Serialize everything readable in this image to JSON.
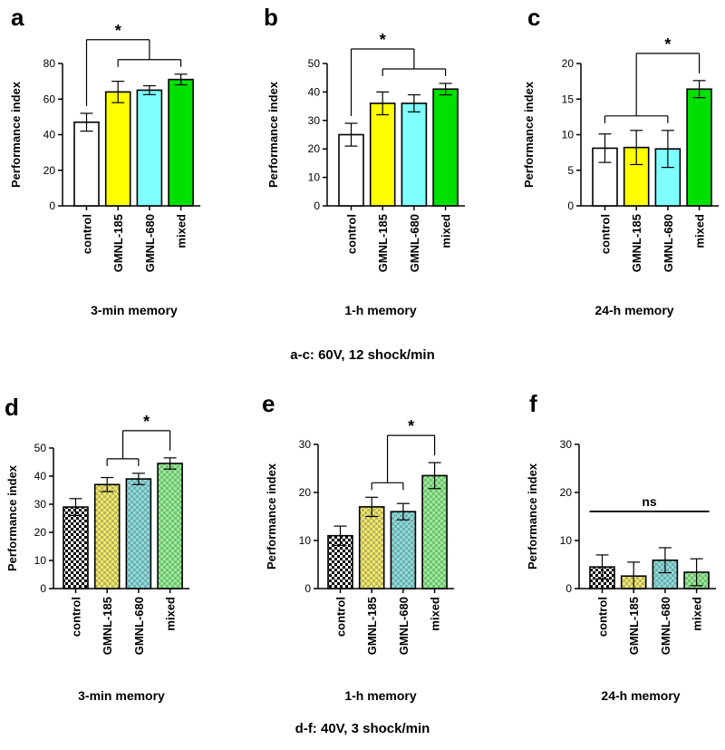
{
  "captions": {
    "top": "a-c: 60V, 12 shock/min",
    "bottom": "d-f: 40V, 3 shock/min"
  },
  "chart_data": [
    {
      "panel": "a",
      "type": "bar",
      "pattern": "solid",
      "ylabel": "Performance index",
      "xlabel": "3-min memory",
      "ylim": [
        0,
        80
      ],
      "yticks": [
        0,
        20,
        40,
        60,
        80
      ],
      "categories": [
        "control",
        "GMNL-185",
        "GMNL-680",
        "mixed"
      ],
      "values": [
        47,
        64,
        65,
        71
      ],
      "errors": [
        5,
        6,
        2.5,
        3
      ],
      "colors": [
        "#ffffff",
        "#ffff00",
        "#80ffff",
        "#00e000"
      ],
      "annotations": [
        {
          "text": "*",
          "from_categories": [
            "control"
          ],
          "to_categories": [
            "GMNL-185",
            "GMNL-680",
            "mixed"
          ]
        }
      ]
    },
    {
      "panel": "b",
      "type": "bar",
      "pattern": "solid",
      "ylabel": "Performance index",
      "xlabel": "1-h memory",
      "ylim": [
        0,
        50
      ],
      "yticks": [
        0,
        10,
        20,
        30,
        40,
        50
      ],
      "categories": [
        "control",
        "GMNL-185",
        "GMNL-680",
        "mixed"
      ],
      "values": [
        25,
        36,
        36,
        41
      ],
      "errors": [
        4,
        4,
        3,
        2
      ],
      "colors": [
        "#ffffff",
        "#ffff00",
        "#80ffff",
        "#00e000"
      ],
      "annotations": [
        {
          "text": "*",
          "from_categories": [
            "control"
          ],
          "to_categories": [
            "GMNL-185",
            "GMNL-680",
            "mixed"
          ]
        }
      ]
    },
    {
      "panel": "c",
      "type": "bar",
      "pattern": "solid",
      "ylabel": "Performance index",
      "xlabel": "24-h memory",
      "ylim": [
        0,
        20
      ],
      "yticks": [
        0,
        5,
        10,
        15,
        20
      ],
      "categories": [
        "control",
        "GMNL-185",
        "GMNL-680",
        "mixed"
      ],
      "values": [
        8.1,
        8.2,
        8.0,
        16.4
      ],
      "errors": [
        2,
        2.4,
        2.6,
        1.2
      ],
      "colors": [
        "#ffffff",
        "#ffff00",
        "#80ffff",
        "#00e000"
      ],
      "annotations": [
        {
          "text": "*",
          "from_categories": [
            "control",
            "GMNL-185",
            "GMNL-680"
          ],
          "to_categories": [
            "mixed"
          ]
        }
      ]
    },
    {
      "panel": "d",
      "type": "bar",
      "pattern": "checker",
      "ylabel": "Performance index",
      "xlabel": "3-min memory",
      "ylim": [
        0,
        50
      ],
      "yticks": [
        0,
        10,
        20,
        30,
        40,
        50
      ],
      "categories": [
        "control",
        "GMNL-185",
        "GMNL-680",
        "mixed"
      ],
      "values": [
        29,
        37,
        39,
        44.5
      ],
      "errors": [
        3,
        2.5,
        2,
        2
      ],
      "colors": [
        "#ffffff",
        "#f0e868",
        "#88dcdc",
        "#90f090"
      ],
      "annotations": [
        {
          "text": "*",
          "from_categories": [
            "GMNL-185",
            "GMNL-680"
          ],
          "to_categories": [
            "mixed"
          ]
        }
      ]
    },
    {
      "panel": "e",
      "type": "bar",
      "pattern": "checker",
      "ylabel": "Performance index",
      "xlabel": "1-h memory",
      "ylim": [
        0,
        30
      ],
      "yticks": [
        0,
        10,
        20,
        30
      ],
      "categories": [
        "control",
        "GMNL-185",
        "GMNL-680",
        "mixed"
      ],
      "values": [
        11,
        17,
        16,
        23.5
      ],
      "errors": [
        2,
        2,
        1.7,
        2.7
      ],
      "colors": [
        "#ffffff",
        "#f0e868",
        "#88dcdc",
        "#90f090"
      ],
      "annotations": [
        {
          "text": "*",
          "from_categories": [
            "GMNL-185",
            "GMNL-680"
          ],
          "to_categories": [
            "mixed"
          ]
        }
      ]
    },
    {
      "panel": "f",
      "type": "bar",
      "pattern": "checker",
      "ylabel": "Performance index",
      "xlabel": "24-h memory",
      "ylim": [
        0,
        30
      ],
      "yticks": [
        0,
        10,
        20,
        30
      ],
      "categories": [
        "control",
        "GMNL-185",
        "GMNL-680",
        "mixed"
      ],
      "values": [
        4.5,
        2.6,
        5.9,
        3.4
      ],
      "errors": [
        2.5,
        2.9,
        2.6,
        2.8
      ],
      "colors": [
        "#ffffff",
        "#f0e868",
        "#88dcdc",
        "#90f090"
      ],
      "annotations": [
        {
          "text": "ns",
          "type": "line"
        }
      ]
    }
  ]
}
